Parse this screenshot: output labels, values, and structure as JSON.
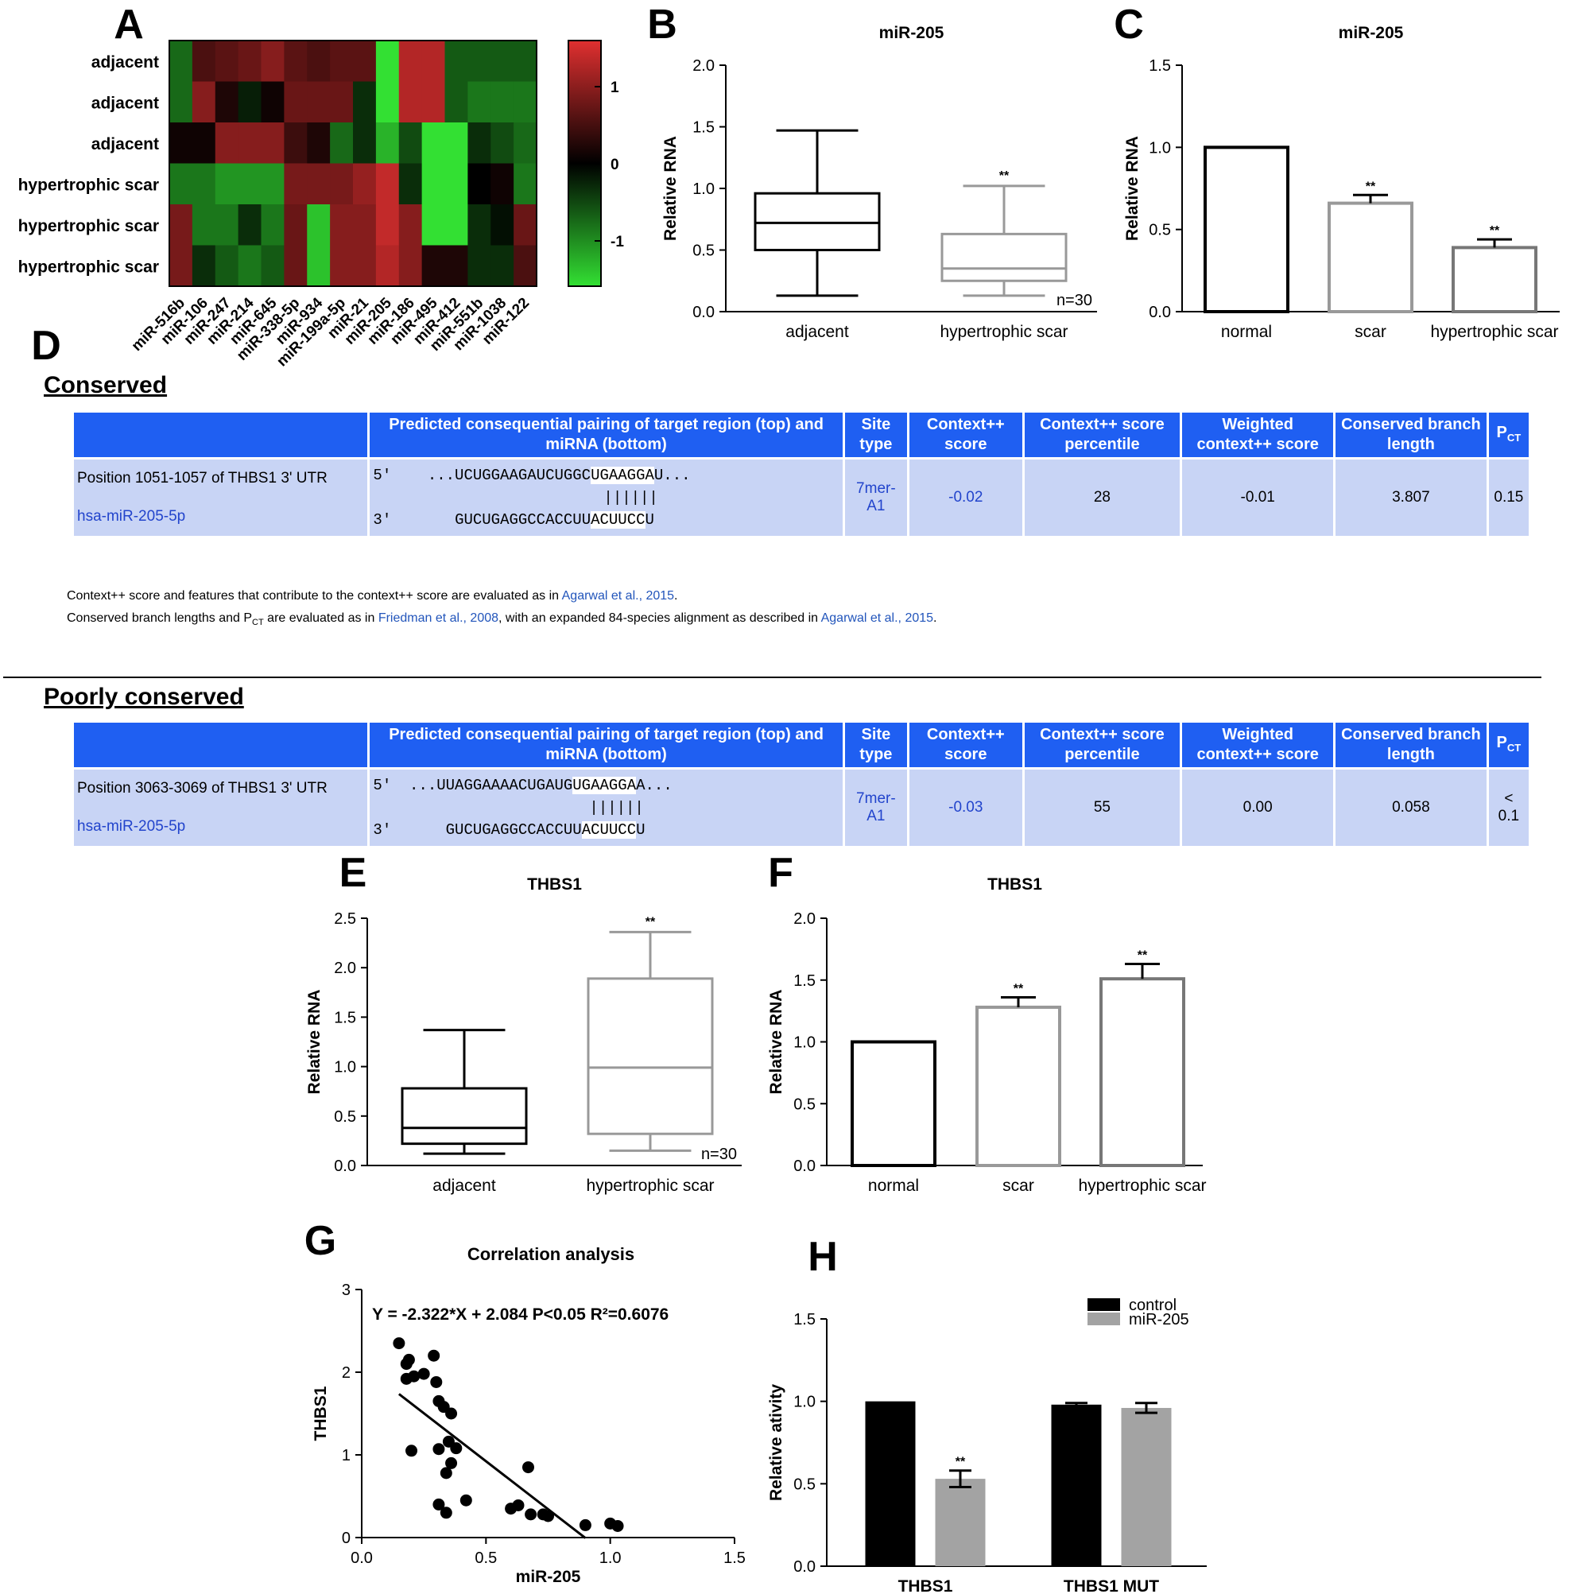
{
  "panels": {
    "A": "A",
    "B": "B",
    "C": "C",
    "D": "D",
    "E": "E",
    "F": "F",
    "G": "G",
    "H": "H"
  },
  "heatmap": {
    "rows": [
      "adjacent",
      "adjacent",
      "adjacent",
      "hypertrophic scar",
      "hypertrophic scar",
      "hypertrophic scar"
    ],
    "cols": [
      "miR-516b",
      "miR-106",
      "miR-247",
      "miR-214",
      "miR-645",
      "miR-338-5p",
      "miR-934",
      "miR-199a-5p",
      "miR-21",
      "miR-205",
      "miR-186",
      "miR-495",
      "miR-412",
      "miR-551b",
      "miR-1038",
      "miR-122"
    ],
    "values": [
      [
        -0.7,
        0.5,
        0.6,
        0.7,
        0.9,
        0.6,
        0.5,
        0.6,
        0.6,
        -1.5,
        1.2,
        1.2,
        -0.6,
        -0.6,
        -0.6,
        -0.6
      ],
      [
        -0.7,
        0.9,
        0.2,
        -0.2,
        0.1,
        0.7,
        0.7,
        0.7,
        -0.3,
        -1.5,
        1.2,
        1.2,
        -0.6,
        -0.8,
        -0.8,
        -0.8
      ],
      [
        0.1,
        0.1,
        0.9,
        0.9,
        0.9,
        0.4,
        0.2,
        -0.7,
        -0.3,
        -1.2,
        -0.5,
        -1.5,
        -1.5,
        -0.3,
        -0.5,
        -0.7
      ],
      [
        -0.8,
        -0.8,
        -1.0,
        -1.0,
        -1.0,
        0.8,
        0.8,
        0.8,
        1.0,
        1.3,
        -0.3,
        -1.5,
        -1.5,
        0.0,
        0.1,
        -0.8
      ],
      [
        0.8,
        -0.8,
        -0.8,
        -0.3,
        -0.8,
        0.7,
        -1.3,
        0.9,
        0.9,
        1.3,
        0.9,
        -1.5,
        -1.5,
        -0.3,
        -0.1,
        0.7
      ],
      [
        0.8,
        -0.3,
        -0.6,
        -0.8,
        -0.6,
        0.7,
        -1.3,
        0.9,
        0.9,
        1.2,
        0.9,
        0.2,
        0.2,
        -0.3,
        -0.3,
        0.5
      ]
    ],
    "scale_ticks": [
      "1",
      "0",
      "-1"
    ],
    "colors": {
      "high": "#e03030",
      "mid": "#000000",
      "low": "#33e033"
    }
  },
  "chart_data": [
    {
      "panel": "B",
      "type": "box",
      "title": "miR-205",
      "ylabel": "Relative RNA",
      "ylim": [
        0,
        2.0
      ],
      "yticks": [
        "0.0",
        "0.5",
        "1.0",
        "1.5",
        "2.0"
      ],
      "categories": [
        "adjacent",
        "hypertrophic scar"
      ],
      "boxes": [
        {
          "min": 0.13,
          "q1": 0.5,
          "median": 0.72,
          "q3": 0.96,
          "max": 1.47,
          "color": "#000000"
        },
        {
          "min": 0.13,
          "q1": 0.25,
          "median": 0.35,
          "q3": 0.63,
          "max": 1.02,
          "color": "#999999",
          "sig": "**"
        }
      ],
      "annotation": "n=30"
    },
    {
      "panel": "C",
      "type": "bar",
      "title": "miR-205",
      "ylabel": "Relative RNA",
      "ylim": [
        0,
        1.5
      ],
      "yticks": [
        "0.0",
        "0.5",
        "1.0",
        "1.5"
      ],
      "categories": [
        "normal",
        "scar",
        "hypertrophic scar"
      ],
      "values": [
        1.0,
        0.66,
        0.39
      ],
      "errors": [
        0,
        0.05,
        0.05
      ],
      "sig": [
        "",
        "**",
        "**"
      ],
      "colors": [
        "#000000",
        "#999999",
        "#777777"
      ]
    },
    {
      "panel": "E",
      "type": "box",
      "title": "THBS1",
      "ylabel": "Relative RNA",
      "ylim": [
        0,
        2.5
      ],
      "yticks": [
        "0.0",
        "0.5",
        "1.0",
        "1.5",
        "2.0",
        "2.5"
      ],
      "categories": [
        "adjacent",
        "hypertrophic scar"
      ],
      "boxes": [
        {
          "min": 0.12,
          "q1": 0.22,
          "median": 0.38,
          "q3": 0.78,
          "max": 1.37,
          "color": "#000000"
        },
        {
          "min": 0.15,
          "q1": 0.32,
          "median": 0.99,
          "q3": 1.89,
          "max": 2.36,
          "color": "#999999",
          "sig": "**"
        }
      ],
      "annotation": "n=30"
    },
    {
      "panel": "F",
      "type": "bar",
      "title": "THBS1",
      "ylabel": "Relative RNA",
      "ylim": [
        0,
        2.0
      ],
      "yticks": [
        "0.0",
        "0.5",
        "1.0",
        "1.5",
        "2.0"
      ],
      "categories": [
        "normal",
        "scar",
        "hypertrophic scar"
      ],
      "values": [
        1.0,
        1.28,
        1.51
      ],
      "errors": [
        0,
        0.08,
        0.12
      ],
      "sig": [
        "",
        "**",
        "**"
      ],
      "colors": [
        "#000000",
        "#999999",
        "#777777"
      ]
    },
    {
      "panel": "G",
      "type": "scatter",
      "title": "Correlation analysis",
      "xlabel": "miR-205",
      "ylabel": "THBS1",
      "xlim": [
        0,
        1.5
      ],
      "ylim": [
        0,
        3
      ],
      "xticks": [
        "0.0",
        "0.5",
        "1.0",
        "1.5"
      ],
      "yticks": [
        "0",
        "1",
        "2",
        "3"
      ],
      "equation": "Y = -2.322*X + 2.084 P<0.05 R²=0.6076",
      "fit": {
        "slope": -2.322,
        "intercept": 2.084,
        "x_from": 0.15,
        "x_to": 0.9
      },
      "points": [
        [
          0.15,
          2.35
        ],
        [
          0.18,
          2.1
        ],
        [
          0.19,
          2.15
        ],
        [
          0.18,
          1.92
        ],
        [
          0.21,
          1.95
        ],
        [
          0.25,
          1.98
        ],
        [
          0.29,
          2.2
        ],
        [
          0.3,
          1.88
        ],
        [
          0.31,
          1.65
        ],
        [
          0.33,
          1.58
        ],
        [
          0.36,
          1.5
        ],
        [
          0.2,
          1.05
        ],
        [
          0.31,
          1.07
        ],
        [
          0.35,
          1.16
        ],
        [
          0.38,
          1.08
        ],
        [
          0.36,
          0.9
        ],
        [
          0.34,
          0.78
        ],
        [
          0.31,
          0.4
        ],
        [
          0.34,
          0.3
        ],
        [
          0.42,
          0.45
        ],
        [
          0.6,
          0.35
        ],
        [
          0.63,
          0.39
        ],
        [
          0.67,
          0.85
        ],
        [
          0.68,
          0.28
        ],
        [
          0.73,
          0.28
        ],
        [
          0.75,
          0.26
        ],
        [
          0.9,
          0.15
        ],
        [
          1.0,
          0.17
        ],
        [
          1.03,
          0.14
        ]
      ]
    },
    {
      "panel": "H",
      "type": "bar",
      "ylabel": "Relative ativity",
      "ylim": [
        0,
        1.5
      ],
      "yticks": [
        "0.0",
        "0.5",
        "1.0",
        "1.5"
      ],
      "categories": [
        "THBS1",
        "THBS1 MUT"
      ],
      "series": [
        {
          "name": "control",
          "values": [
            1.0,
            0.98
          ],
          "errors": [
            0,
            0.01
          ],
          "color": "#000000"
        },
        {
          "name": "miR-205",
          "values": [
            0.53,
            0.96
          ],
          "errors": [
            0.05,
            0.03
          ],
          "color": "#a3a3a3"
        }
      ],
      "sig": "**"
    }
  ],
  "tables": {
    "conserved_title": "Conserved",
    "poorly_title": "Poorly conserved",
    "headers": [
      "",
      "Predicted consequential pairing of target region (top) and miRNA (bottom)",
      "Site type",
      "Context++ score",
      "Context++ score percentile",
      "Weighted context++ score",
      "Conserved branch length",
      "P"
    ],
    "pct_sub": "CT",
    "conserved": {
      "position": "Position 1051-1057 of THBS1 3' UTR",
      "mirna": "hsa-miR-205-5p",
      "top_prefix": "5'",
      "top_seq": "...UCUGGAAGAUCUGGC",
      "top_seed": "UGAAGGA",
      "top_suffix": "U...",
      "pairs": "||||||",
      "bot_prefix": "3'",
      "bot_seq": "GUCUGAGGCCACCUU",
      "bot_seed": "ACUUCC",
      "bot_suffix": "U",
      "site": "7mer-A1",
      "score": "-0.02",
      "percentile": "28",
      "weighted": "-0.01",
      "branch": "3.807",
      "pct": "0.15"
    },
    "poor": {
      "position": "Position 3063-3069 of THBS1 3' UTR",
      "mirna": "hsa-miR-205-5p",
      "top_prefix": "5'",
      "top_seq": "...UUAGGAAAACUGAUG",
      "top_seed": "UGAAGGA",
      "top_suffix": "A...",
      "pairs": "||||||",
      "bot_prefix": "3'",
      "bot_seq": "GUCUGAGGCCACCUU",
      "bot_seed": "ACUUCC",
      "bot_suffix": "U",
      "site": "7mer-A1",
      "score": "-0.03",
      "percentile": "55",
      "weighted": "0.00",
      "branch": "0.058",
      "pct": "< 0.1"
    }
  },
  "notes": {
    "line1_a": "Context++ score and features that contribute to the context++ score are evaluated as in ",
    "line1_link": "Agarwal et al., 2015",
    "line1_b": ".",
    "line2_a": "Conserved branch lengths and P",
    "line2_sub": "CT",
    "line2_b": " are evaluated as in ",
    "line2_link1": "Friedman et al., 2008",
    "line2_c": ", with an expanded 84-species alignment as described in ",
    "line2_link2": "Agarwal et al., 2015",
    "line2_d": "."
  }
}
